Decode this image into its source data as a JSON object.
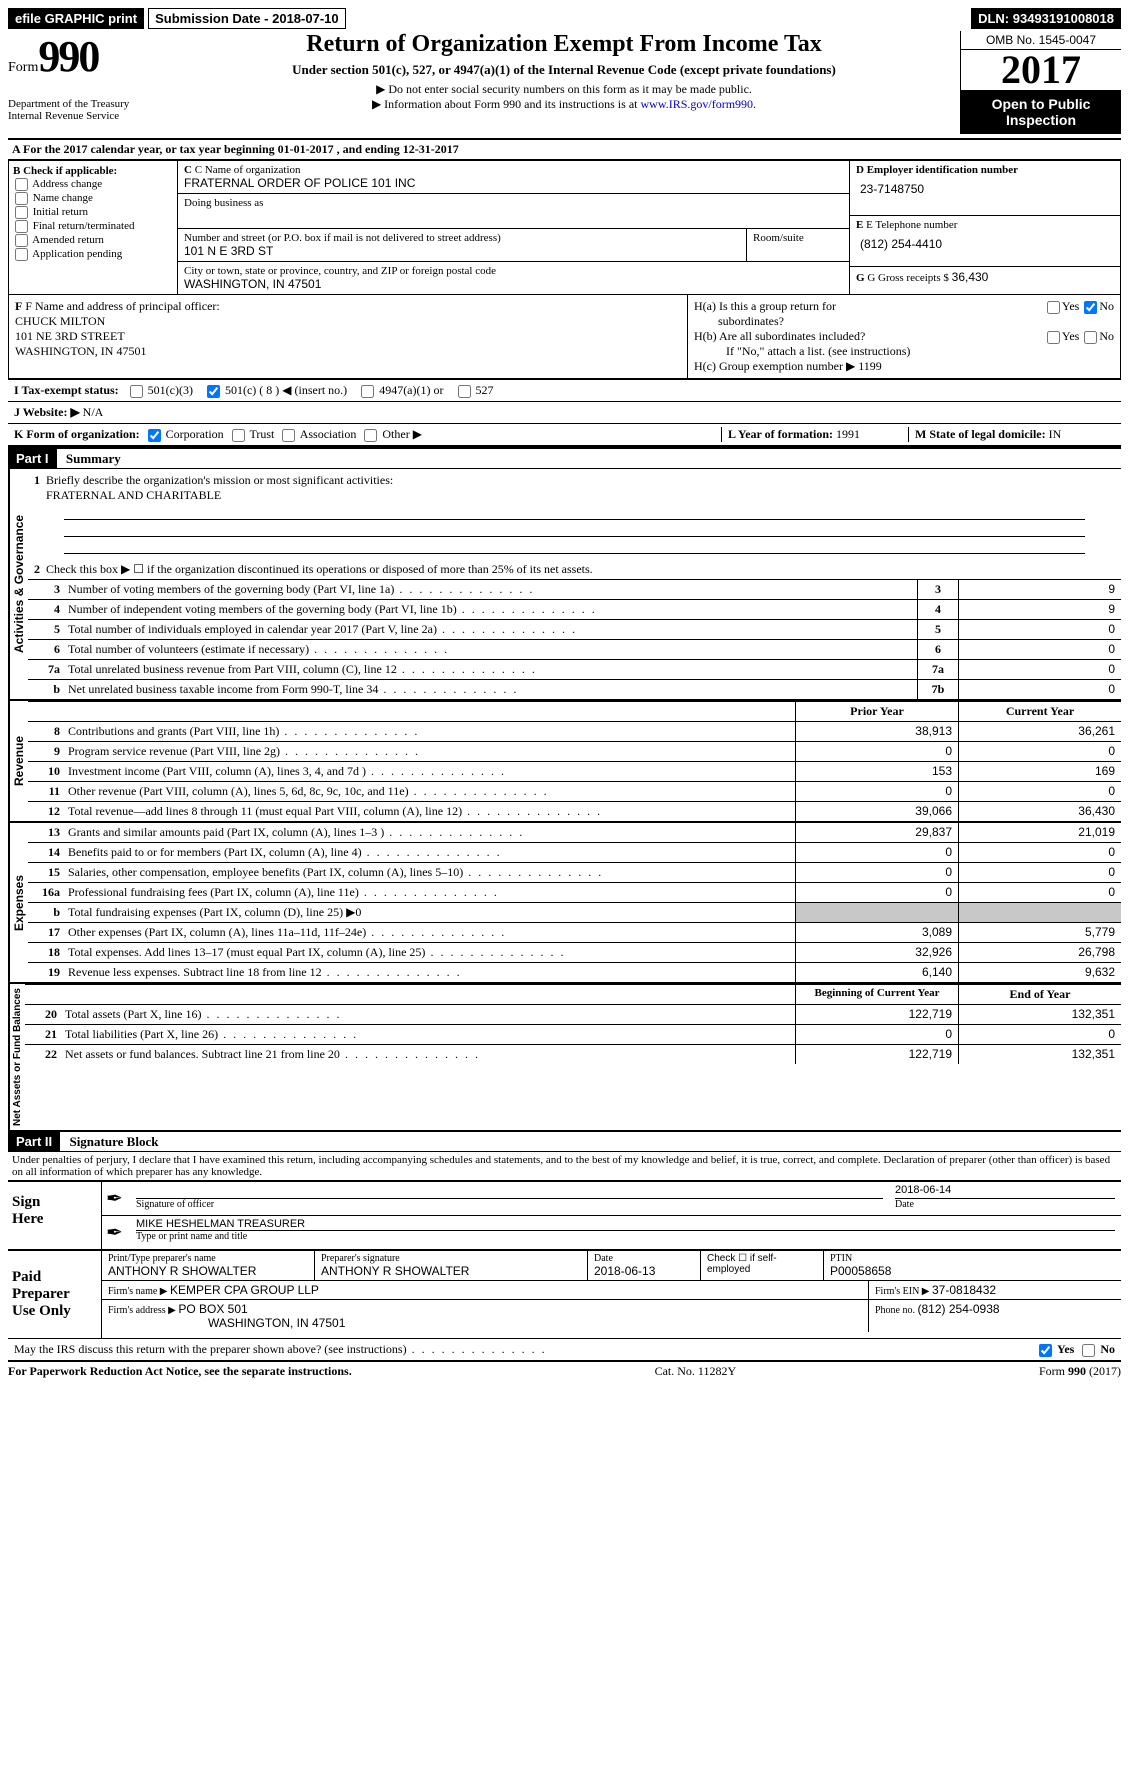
{
  "topbar": {
    "efile": "efile GRAPHIC print",
    "subdate_label": "Submission Date - ",
    "subdate": "2018-07-10",
    "dln_label": "DLN: ",
    "dln": "93493191008018"
  },
  "header": {
    "form_word": "Form",
    "form_num": "990",
    "dept1": "Department of the Treasury",
    "dept2": "Internal Revenue Service",
    "title": "Return of Organization Exempt From Income Tax",
    "subtitle": "Under section 501(c), 527, or 4947(a)(1) of the Internal Revenue Code (except private foundations)",
    "note1": "▶ Do not enter social security numbers on this form as it may be made public.",
    "note2_a": "▶ Information about Form 990 and its instructions is at ",
    "note2_link": "www.IRS.gov/form990",
    "omb": "OMB No. 1545-0047",
    "year": "2017",
    "open1": "Open to Public",
    "open2": "Inspection"
  },
  "A": {
    "text_a": "A  For the 2017 calendar year, or tax year beginning ",
    "begin": "01-01-2017",
    "text_b": "   , and ending ",
    "end": "12-31-2017"
  },
  "B": {
    "label": "B Check if applicable:",
    "items": [
      "Address change",
      "Name change",
      "Initial return",
      "Final return/terminated",
      "Amended return",
      "Application pending"
    ]
  },
  "C": {
    "name_label": "C Name of organization",
    "name": "FRATERNAL ORDER OF POLICE 101 INC",
    "dba_label": "Doing business as",
    "dba": "",
    "street_label": "Number and street (or P.O. box if mail is not delivered to street address)",
    "street": "101 N E 3RD ST",
    "room_label": "Room/suite",
    "city_label": "City or town, state or province, country, and ZIP or foreign postal code",
    "city": "WASHINGTON, IN  47501"
  },
  "D": {
    "label": "D Employer identification number",
    "val": "23-7148750"
  },
  "E": {
    "label": "E Telephone number",
    "val": "(812) 254-4410"
  },
  "G": {
    "label": "G Gross receipts $ ",
    "val": "36,430"
  },
  "F": {
    "label": "F  Name and address of principal officer:",
    "name": "CHUCK MILTON",
    "addr1": "101 NE 3RD STREET",
    "addr2": "WASHINGTON, IN  47501"
  },
  "H": {
    "a1": "H(a)  Is this a group return for",
    "a2": "subordinates?",
    "b": "H(b)  Are all subordinates included?",
    "b_note": "If \"No,\" attach a list. (see instructions)",
    "c": "H(c)  Group exemption number ▶   ",
    "c_val": "1199",
    "yes": "Yes",
    "no": "No"
  },
  "I": {
    "label": "I  Tax-exempt status:",
    "o1": "501(c)(3)",
    "o2": "501(c) ( 8 ) ◀ (insert no.)",
    "o3": "4947(a)(1) or",
    "o4": "527"
  },
  "J": {
    "label": "J  Website: ▶  ",
    "val": "N/A"
  },
  "K": {
    "label": "K Form of organization:",
    "corp": "Corporation",
    "trust": "Trust",
    "assoc": "Association",
    "other": "Other ▶"
  },
  "L": {
    "label": "L Year of formation: ",
    "val": "1991"
  },
  "M": {
    "label": "M State of legal domicile: ",
    "val": "IN"
  },
  "part1": {
    "bar": "Part I",
    "title": "Summary"
  },
  "side": {
    "ag": "Activities & Governance",
    "rev": "Revenue",
    "exp": "Expenses",
    "na": "Net Assets or Fund Balances"
  },
  "q1": {
    "label": "Briefly describe the organization's mission or most significant activities:",
    "val": "FRATERNAL AND CHARITABLE"
  },
  "q2": "Check this box ▶ ☐  if the organization discontinued its operations or disposed of more than 25% of its net assets.",
  "lines_ag": [
    {
      "n": "3",
      "t": "Number of voting members of the governing body (Part VI, line 1a)",
      "b": "3",
      "v": "9"
    },
    {
      "n": "4",
      "t": "Number of independent voting members of the governing body (Part VI, line 1b)",
      "b": "4",
      "v": "9"
    },
    {
      "n": "5",
      "t": "Total number of individuals employed in calendar year 2017 (Part V, line 2a)",
      "b": "5",
      "v": "0"
    },
    {
      "n": "6",
      "t": "Total number of volunteers (estimate if necessary)",
      "b": "6",
      "v": "0"
    },
    {
      "n": "7a",
      "t": "Total unrelated business revenue from Part VIII, column (C), line 12",
      "b": "7a",
      "v": "0"
    },
    {
      "n": "b",
      "t": "Net unrelated business taxable income from Form 990-T, line 34",
      "b": "7b",
      "v": "0"
    }
  ],
  "col_hdr": {
    "prior": "Prior Year",
    "current": "Current Year"
  },
  "lines_rev": [
    {
      "n": "8",
      "t": "Contributions and grants (Part VIII, line 1h)",
      "p": "38,913",
      "c": "36,261"
    },
    {
      "n": "9",
      "t": "Program service revenue (Part VIII, line 2g)",
      "p": "0",
      "c": "0"
    },
    {
      "n": "10",
      "t": "Investment income (Part VIII, column (A), lines 3, 4, and 7d )",
      "p": "153",
      "c": "169"
    },
    {
      "n": "11",
      "t": "Other revenue (Part VIII, column (A), lines 5, 6d, 8c, 9c, 10c, and 11e)",
      "p": "0",
      "c": "0"
    },
    {
      "n": "12",
      "t": "Total revenue—add lines 8 through 11 (must equal Part VIII, column (A), line 12)",
      "p": "39,066",
      "c": "36,430"
    }
  ],
  "lines_exp": [
    {
      "n": "13",
      "t": "Grants and similar amounts paid (Part IX, column (A), lines 1–3 )",
      "p": "29,837",
      "c": "21,019"
    },
    {
      "n": "14",
      "t": "Benefits paid to or for members (Part IX, column (A), line 4)",
      "p": "0",
      "c": "0"
    },
    {
      "n": "15",
      "t": "Salaries, other compensation, employee benefits (Part IX, column (A), lines 5–10)",
      "p": "0",
      "c": "0"
    },
    {
      "n": "16a",
      "t": "Professional fundraising fees (Part IX, column (A), line 11e)",
      "p": "0",
      "c": "0"
    },
    {
      "n": "b",
      "t": "Total fundraising expenses (Part IX, column (D), line 25) ▶0",
      "p": "",
      "c": "",
      "grey": true
    },
    {
      "n": "17",
      "t": "Other expenses (Part IX, column (A), lines 11a–11d, 11f–24e)",
      "p": "3,089",
      "c": "5,779"
    },
    {
      "n": "18",
      "t": "Total expenses. Add lines 13–17 (must equal Part IX, column (A), line 25)",
      "p": "32,926",
      "c": "26,798"
    },
    {
      "n": "19",
      "t": "Revenue less expenses. Subtract line 18 from line 12",
      "p": "6,140",
      "c": "9,632"
    }
  ],
  "col_hdr2": {
    "begin": "Beginning of Current Year",
    "end": "End of Year"
  },
  "lines_na": [
    {
      "n": "20",
      "t": "Total assets (Part X, line 16)",
      "p": "122,719",
      "c": "132,351"
    },
    {
      "n": "21",
      "t": "Total liabilities (Part X, line 26)",
      "p": "0",
      "c": "0"
    },
    {
      "n": "22",
      "t": "Net assets or fund balances. Subtract line 21 from line 20",
      "p": "122,719",
      "c": "132,351"
    }
  ],
  "part2": {
    "bar": "Part II",
    "title": "Signature Block"
  },
  "perjury": "Under penalties of perjury, I declare that I have examined this return, including accompanying schedules and statements, and to the best of my knowledge and belief, it is true, correct, and complete. Declaration of preparer (other than officer) is based on all information of which preparer has any knowledge.",
  "sign": {
    "label1": "Sign",
    "label2": "Here",
    "date": "2018-06-14",
    "sig_label": "Signature of officer",
    "date_label": "Date",
    "name": "MIKE HESHELMAN TREASURER",
    "name_label": "Type or print name and title"
  },
  "paid": {
    "label1": "Paid",
    "label2": "Preparer",
    "label3": "Use Only",
    "prep_name_label": "Print/Type preparer's name",
    "prep_name": "ANTHONY R SHOWALTER",
    "prep_sig_label": "Preparer's signature",
    "prep_sig": "ANTHONY R SHOWALTER",
    "prep_date_label": "Date",
    "prep_date": "2018-06-13",
    "check_label": "Check ☐ if self-employed",
    "ptin_label": "PTIN",
    "ptin": "P00058658",
    "firm_name_label": "Firm's name      ▶ ",
    "firm_name": "KEMPER CPA GROUP LLP",
    "firm_ein_label": "Firm's EIN ▶ ",
    "firm_ein": "37-0818432",
    "firm_addr_label": "Firm's address ▶ ",
    "firm_addr1": "PO BOX 501",
    "firm_addr2": "WASHINGTON, IN  47501",
    "phone_label": "Phone no. ",
    "phone": "(812) 254-0938"
  },
  "discuss": "May the IRS discuss this return with the preparer shown above? (see instructions)",
  "footer": {
    "left": "For Paperwork Reduction Act Notice, see the separate instructions.",
    "mid": "Cat. No. 11282Y",
    "right_a": "Form ",
    "right_b": "990",
    "right_c": " (2017)"
  }
}
